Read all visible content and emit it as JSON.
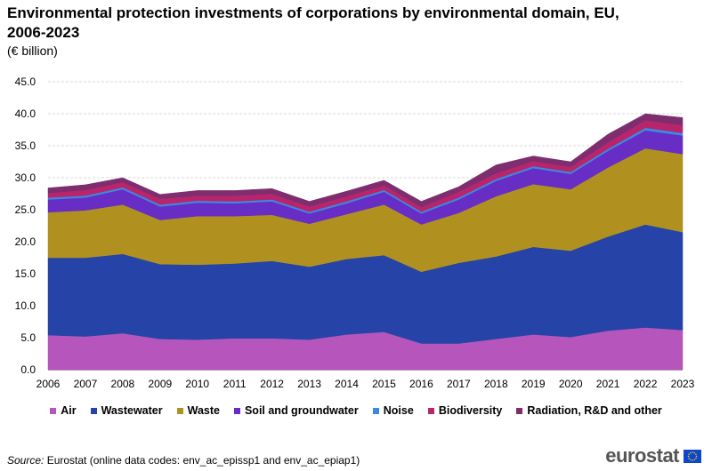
{
  "title": "Environmental protection investments of corporations by environmental domain, EU, 2006-2023",
  "subtitle": "(€ billion)",
  "chart_data": {
    "type": "area",
    "stacked": true,
    "categories": [
      "2006",
      "2007",
      "2008",
      "2009",
      "2010",
      "2011",
      "2012",
      "2013",
      "2014",
      "2015",
      "2016",
      "2017",
      "2018",
      "2019",
      "2020",
      "2021",
      "2022",
      "2023"
    ],
    "ylim": [
      0,
      45
    ],
    "yticks": [
      0,
      5,
      10,
      15,
      20,
      25,
      30,
      35,
      40,
      45
    ],
    "ytick_labels": [
      "0.0",
      "5.0",
      "10.0",
      "15.0",
      "20.0",
      "25.0",
      "30.0",
      "35.0",
      "40.0",
      "45.0"
    ],
    "grid": true,
    "legend_position": "bottom",
    "series": [
      {
        "name": "Air",
        "color": "#b656bd",
        "values": [
          5.4,
          5.2,
          5.7,
          4.8,
          4.7,
          4.9,
          4.9,
          4.7,
          5.5,
          5.9,
          4.1,
          4.1,
          4.8,
          5.5,
          5.1,
          6.1,
          6.6,
          6.2
        ]
      },
      {
        "name": "Wastewater",
        "color": "#2644a7",
        "values": [
          12.1,
          12.3,
          12.4,
          11.7,
          11.7,
          11.7,
          12.1,
          11.4,
          11.8,
          12.0,
          11.2,
          12.6,
          12.9,
          13.7,
          13.5,
          14.7,
          16.1,
          15.3
        ]
      },
      {
        "name": "Waste",
        "color": "#b09120",
        "values": [
          7.1,
          7.4,
          7.7,
          6.9,
          7.6,
          7.4,
          7.2,
          6.7,
          7.0,
          7.9,
          7.4,
          7.8,
          9.4,
          9.8,
          9.6,
          10.8,
          11.9,
          12.2
        ]
      },
      {
        "name": "Soil and groundwater",
        "color": "#672dc4",
        "values": [
          2.0,
          2.0,
          2.4,
          2.1,
          2.1,
          2.0,
          2.1,
          1.6,
          1.7,
          2.0,
          1.7,
          2.1,
          2.4,
          2.5,
          2.4,
          2.6,
          2.8,
          2.9
        ]
      },
      {
        "name": "Noise",
        "color": "#388ae2",
        "values": [
          0.3,
          0.3,
          0.3,
          0.3,
          0.3,
          0.3,
          0.3,
          0.3,
          0.3,
          0.3,
          0.3,
          0.3,
          0.3,
          0.3,
          0.3,
          0.3,
          0.4,
          0.4
        ]
      },
      {
        "name": "Biodiversity",
        "color": "#b9256c",
        "values": [
          0.7,
          0.9,
          0.8,
          0.9,
          0.8,
          0.9,
          0.9,
          0.8,
          0.8,
          0.7,
          0.7,
          0.9,
          0.9,
          0.8,
          0.8,
          1.0,
          1.2,
          1.2
        ]
      },
      {
        "name": "Radiation, R&D and other",
        "color": "#7e2d6f",
        "values": [
          0.8,
          0.8,
          0.7,
          0.7,
          0.8,
          0.8,
          0.8,
          0.8,
          0.8,
          0.8,
          0.9,
          0.8,
          1.3,
          0.8,
          0.8,
          1.3,
          1.0,
          1.2
        ]
      }
    ]
  },
  "footer": {
    "source_label": "Source:",
    "source_text": " Eurostat (online data codes: env_ac_epissp1 and env_ac_epiap1)"
  },
  "brand": {
    "name": "eurostat",
    "flag_color": "#0e47cb",
    "star_color": "#ffdd00"
  }
}
